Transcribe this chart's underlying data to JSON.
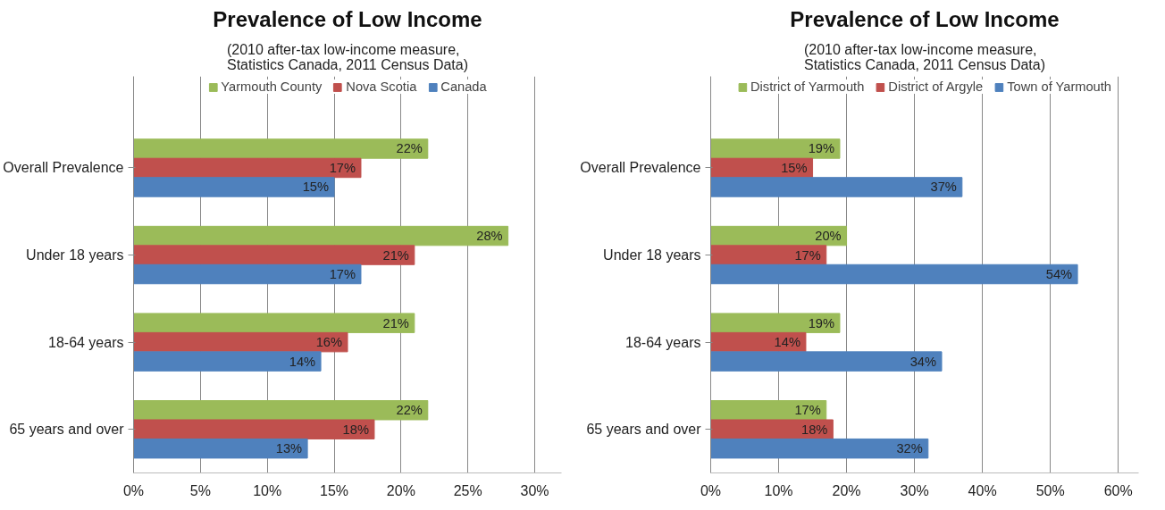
{
  "chart_data": [
    {
      "type": "bar",
      "orientation": "horizontal",
      "title": "Prevalence of Low Income",
      "subtitle": "(2010 after-tax low-income measure,\nStatistics Canada, 2011 Census Data)",
      "categories": [
        "Overall Prevalence",
        "Under 18 years",
        "18-64 years",
        "65 years and over"
      ],
      "series": [
        {
          "name": "Yarmouth County",
          "color": "#9bbb59",
          "values": [
            22,
            28,
            21,
            22
          ],
          "value_labels": [
            "22%",
            "28%",
            "21%",
            "22%"
          ]
        },
        {
          "name": "Nova Scotia",
          "color": "#c0504d",
          "values": [
            17,
            21,
            16,
            18
          ],
          "value_labels": [
            "17%",
            "21%",
            "16%",
            "18%"
          ]
        },
        {
          "name": "Canada",
          "color": "#4f81bd",
          "values": [
            15,
            17,
            14,
            13
          ],
          "value_labels": [
            "15%",
            "17%",
            "14%",
            "13%"
          ]
        }
      ],
      "xlim": [
        0,
        32
      ],
      "xticks": [
        {
          "value": 0,
          "label": "0%"
        },
        {
          "value": 5,
          "label": "5%"
        },
        {
          "value": 10,
          "label": "10%"
        },
        {
          "value": 15,
          "label": "15%"
        },
        {
          "value": 20,
          "label": "20%"
        },
        {
          "value": 25,
          "label": "25%"
        },
        {
          "value": 30,
          "label": "30%"
        }
      ],
      "grid": "x",
      "legend": "top"
    },
    {
      "type": "bar",
      "orientation": "horizontal",
      "title": "Prevalence of Low Income",
      "subtitle": "(2010 after-tax low-income measure,\nStatistics Canada, 2011 Census Data)",
      "categories": [
        "Overall Prevalence",
        "Under 18 years",
        "18-64 years",
        "65 years and over"
      ],
      "series": [
        {
          "name": "District of Yarmouth",
          "color": "#9bbb59",
          "values": [
            19,
            20,
            19,
            17
          ],
          "value_labels": [
            "19%",
            "20%",
            "19%",
            "17%"
          ]
        },
        {
          "name": "District of Argyle",
          "color": "#c0504d",
          "values": [
            15,
            17,
            14,
            18
          ],
          "value_labels": [
            "15%",
            "17%",
            "14%",
            "18%"
          ]
        },
        {
          "name": "Town of Yarmouth",
          "color": "#4f81bd",
          "values": [
            37,
            54,
            34,
            32
          ],
          "value_labels": [
            "37%",
            "54%",
            "34%",
            "32%"
          ]
        }
      ],
      "xlim": [
        0,
        63
      ],
      "xticks": [
        {
          "value": 0,
          "label": "0%"
        },
        {
          "value": 10,
          "label": "10%"
        },
        {
          "value": 20,
          "label": "20%"
        },
        {
          "value": 30,
          "label": "30%"
        },
        {
          "value": 40,
          "label": "40%"
        },
        {
          "value": 50,
          "label": "50%"
        },
        {
          "value": 60,
          "label": "60%"
        }
      ],
      "grid": "x",
      "legend": "top"
    }
  ]
}
